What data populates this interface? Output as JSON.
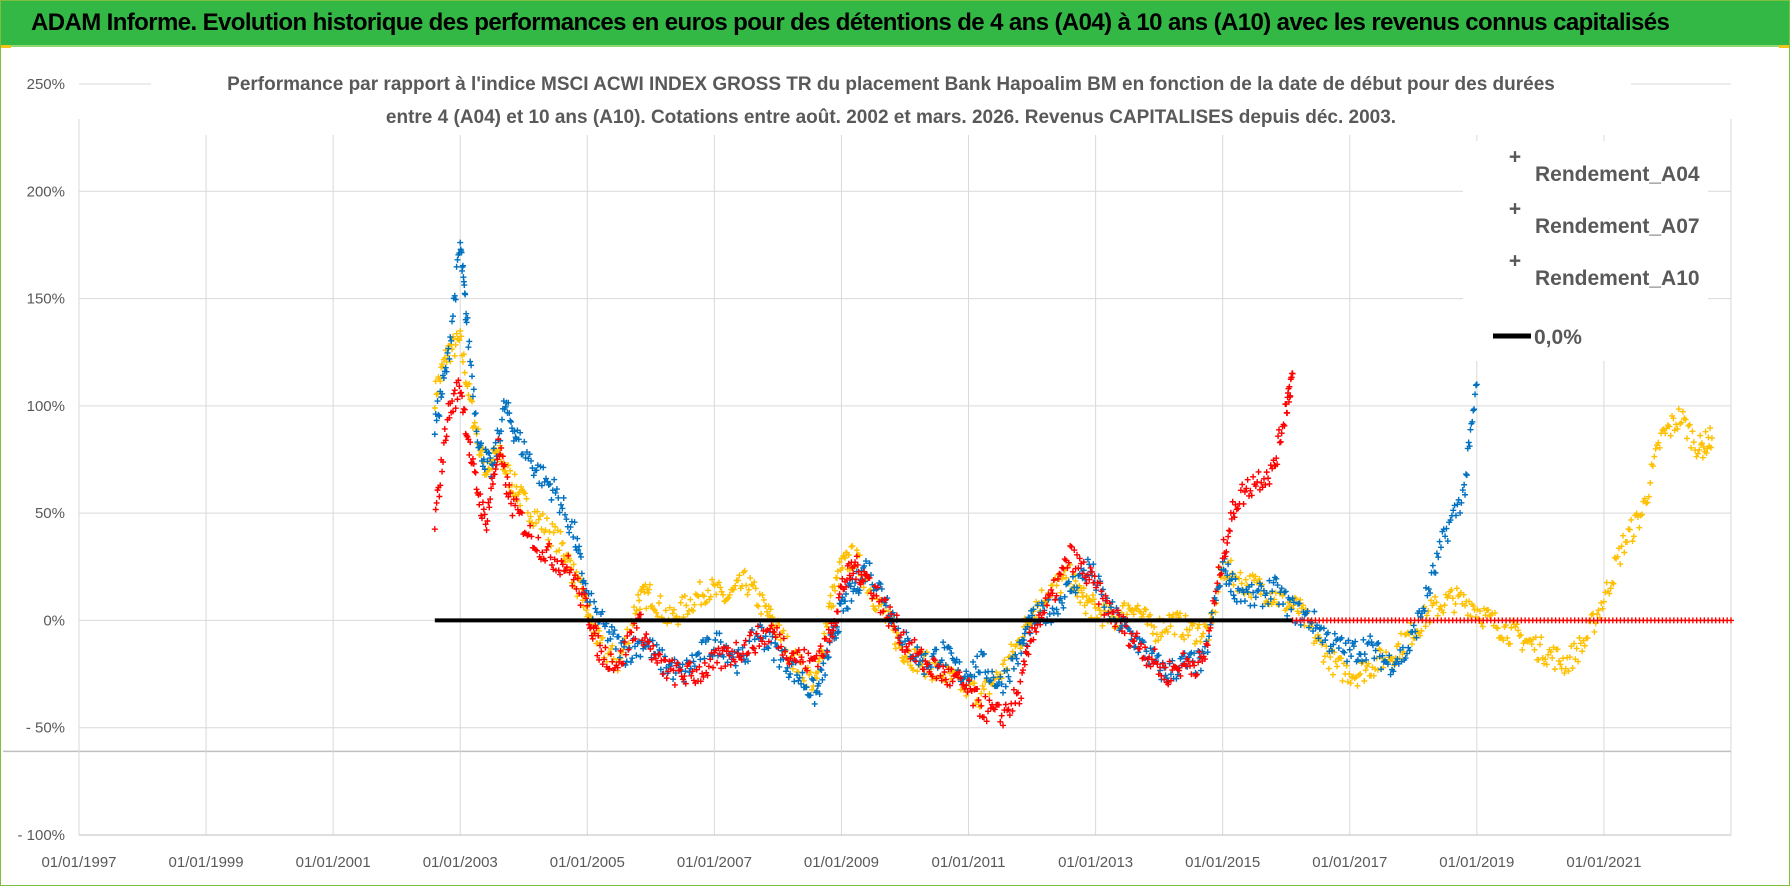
{
  "header": {
    "title": "ADAM Informe. Evolution historique des performances en euros pour des détentions de 4 ans (A04) à 10 ans (A10) avec les revenus connus capitalisés"
  },
  "colors": {
    "header_bg": "#33b846",
    "a04": "#ffc000",
    "a07": "#0070c0",
    "a10": "#ff0000",
    "zero_line": "#000000",
    "grid": "#d9d9d9"
  },
  "chart_data": {
    "type": "scatter",
    "title_line1": "Performance par rapport à l'indice MSCI ACWI INDEX GROSS TR  du placement Bank Hapoalim BM en fonction de la date de début pour des durées",
    "title_line2": "entre 4 (A04) et 10 ans (A10). Cotations entre août. 2002 et mars. 2026. Revenus CAPITALISES depuis déc. 2003.",
    "x_ticks": [
      "01/01/1997",
      "01/01/1999",
      "01/01/2001",
      "01/01/2003",
      "01/01/2005",
      "01/01/2007",
      "01/01/2009",
      "01/01/2011",
      "01/01/2013",
      "01/01/2015",
      "01/01/2017",
      "01/01/2019",
      "01/01/2021"
    ],
    "y_ticks": [
      "250%",
      "200%",
      "150%",
      "100%",
      "50%",
      "0%",
      "- 50%",
      "- 100%"
    ],
    "y_tick_values": [
      250,
      200,
      150,
      100,
      50,
      0,
      -50,
      -100
    ],
    "xlim": [
      1997.0,
      2023.0
    ],
    "ylim": [
      -100,
      250
    ],
    "legend_position": "top-right",
    "legend": [
      {
        "label": "Rendement_A04",
        "marker": "plus",
        "color": "#ffc000"
      },
      {
        "label": "Rendement_A07",
        "marker": "plus",
        "color": "#0070c0"
      },
      {
        "label": "Rendement_A10",
        "marker": "plus",
        "color": "#ff0000"
      },
      {
        "label": "0,0%",
        "marker": "line",
        "color": "#000000"
      }
    ],
    "series": [
      {
        "name": "Rendement_A04",
        "x": [
          2002.6,
          2002.8,
          2003.0,
          2003.2,
          2003.4,
          2003.6,
          2003.8,
          2004.0,
          2004.3,
          2004.6,
          2004.8,
          2005.0,
          2005.2,
          2005.5,
          2005.8,
          2006.0,
          2006.3,
          2006.6,
          2006.9,
          2007.2,
          2007.5,
          2007.8,
          2008.0,
          2008.3,
          2008.6,
          2008.8,
          2009.0,
          2009.2,
          2009.5,
          2009.8,
          2010.0,
          2010.3,
          2010.6,
          2010.9,
          2011.2,
          2011.5,
          2011.8,
          2012.0,
          2012.3,
          2012.6,
          2012.8,
          2013.0,
          2013.3,
          2013.6,
          2013.9,
          2014.2,
          2014.5,
          2014.8,
          2015.0,
          2015.3,
          2015.6,
          2015.9,
          2016.2,
          2016.5,
          2016.8,
          2017.1,
          2017.4,
          2017.7,
          2018.0,
          2018.3,
          2018.6,
          2018.9,
          2019.2,
          2019.5,
          2019.8,
          2020.1,
          2020.4,
          2020.7,
          2021.0,
          2021.3,
          2021.6,
          2021.9,
          2022.2,
          2022.5,
          2022.7
        ],
        "values": [
          105,
          125,
          130,
          95,
          70,
          78,
          65,
          55,
          45,
          35,
          20,
          5,
          -12,
          -20,
          10,
          12,
          0,
          8,
          15,
          10,
          18,
          5,
          -5,
          -20,
          -30,
          5,
          25,
          30,
          12,
          -5,
          -15,
          -20,
          -25,
          -30,
          -35,
          -25,
          -10,
          5,
          15,
          20,
          10,
          5,
          0,
          8,
          -5,
          0,
          -5,
          -5,
          25,
          18,
          15,
          10,
          5,
          -10,
          -22,
          -25,
          -20,
          -15,
          -5,
          5,
          10,
          8,
          0,
          -5,
          -10,
          -15,
          -20,
          -10,
          10,
          35,
          50,
          85,
          95,
          80,
          85
        ]
      },
      {
        "name": "Rendement_A07",
        "x": [
          2002.6,
          2002.8,
          2003.0,
          2003.1,
          2003.3,
          2003.5,
          2003.7,
          2003.9,
          2004.2,
          2004.5,
          2004.8,
          2005.0,
          2005.3,
          2005.6,
          2005.9,
          2006.2,
          2006.5,
          2006.8,
          2007.1,
          2007.4,
          2007.7,
          2008.0,
          2008.3,
          2008.6,
          2008.8,
          2009.0,
          2009.2,
          2009.4,
          2009.7,
          2010.0,
          2010.3,
          2010.6,
          2010.9,
          2011.2,
          2011.5,
          2011.8,
          2012.0,
          2012.3,
          2012.6,
          2012.9,
          2013.2,
          2013.5,
          2013.8,
          2014.1,
          2014.4,
          2014.7,
          2015.0,
          2015.2,
          2015.5,
          2015.8,
          2016.1,
          2016.4,
          2016.7,
          2017.0,
          2017.3,
          2017.6,
          2017.9,
          2018.2,
          2018.5,
          2018.8,
          2019.0
        ],
        "values": [
          90,
          120,
          175,
          140,
          80,
          70,
          100,
          85,
          70,
          60,
          40,
          10,
          -5,
          -15,
          -10,
          -20,
          -25,
          -15,
          -10,
          -20,
          -5,
          -15,
          -25,
          -35,
          -15,
          5,
          15,
          25,
          10,
          -10,
          -20,
          -15,
          -25,
          -20,
          -30,
          -15,
          0,
          5,
          15,
          25,
          5,
          -5,
          -15,
          -25,
          -20,
          -20,
          25,
          15,
          10,
          15,
          5,
          0,
          -10,
          -15,
          -12,
          -20,
          -15,
          10,
          40,
          60,
          110
        ]
      },
      {
        "name": "Rendement_A10",
        "x": [
          2002.6,
          2002.8,
          2003.0,
          2003.2,
          2003.4,
          2003.6,
          2003.8,
          2004.1,
          2004.4,
          2004.7,
          2005.0,
          2005.2,
          2005.5,
          2005.8,
          2006.1,
          2006.4,
          2006.7,
          2007.0,
          2007.3,
          2007.6,
          2007.9,
          2008.2,
          2008.5,
          2008.8,
          2009.0,
          2009.2,
          2009.4,
          2009.7,
          2010.0,
          2010.3,
          2010.6,
          2010.9,
          2011.2,
          2011.5,
          2011.8,
          2012.0,
          2012.3,
          2012.6,
          2012.9,
          2013.2,
          2013.5,
          2013.8,
          2014.1,
          2014.4,
          2014.7,
          2015.0,
          2015.2,
          2015.5,
          2015.8,
          2016.0,
          2016.1
        ],
        "values": [
          45,
          95,
          110,
          70,
          45,
          80,
          55,
          40,
          30,
          25,
          5,
          -15,
          -20,
          0,
          -20,
          -25,
          -25,
          -20,
          -15,
          -10,
          -5,
          -15,
          -20,
          -10,
          15,
          25,
          20,
          5,
          -10,
          -20,
          -25,
          -30,
          -40,
          -45,
          -35,
          -5,
          10,
          30,
          20,
          5,
          -5,
          -15,
          -25,
          -20,
          -20,
          30,
          55,
          65,
          70,
          100,
          115
        ]
      }
    ],
    "zero_line": {
      "label": "0,0%",
      "x_start": 2002.6,
      "x_end": 2016.1,
      "value": 0
    },
    "zero_tail_a10": {
      "x_start": 2016.1,
      "x_end": 2023.0,
      "value": 0
    }
  }
}
